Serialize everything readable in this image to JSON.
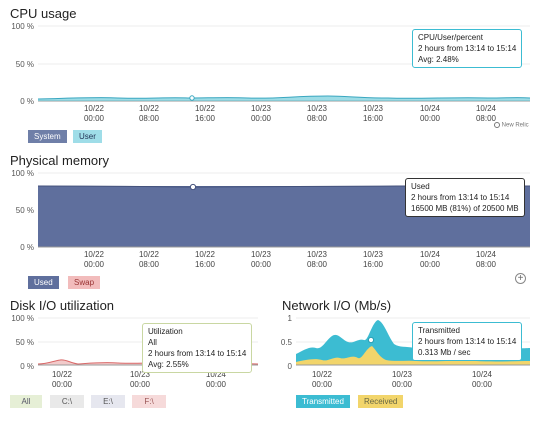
{
  "cpu": {
    "title": "CPU usage",
    "yticks": [
      "100 %",
      "50 %",
      "0 %"
    ],
    "xticks": [
      [
        "10/22",
        "00:00"
      ],
      [
        "10/22",
        "08:00"
      ],
      [
        "10/22",
        "16:00"
      ],
      [
        "10/23",
        "00:00"
      ],
      [
        "10/23",
        "08:00"
      ],
      [
        "10/23",
        "16:00"
      ],
      [
        "10/24",
        "00:00"
      ],
      [
        "10/24",
        "08:00"
      ]
    ],
    "tooltip": {
      "l1": "CPU/User/percent",
      "l2": "2 hours from 13:14 to 15:14",
      "l3": "Avg: 2.48%"
    },
    "legend": [
      "System",
      "User"
    ],
    "brand": "New Relic",
    "colors": {
      "system": "#6f7fa8",
      "user": "#5bc4d6"
    }
  },
  "memory": {
    "title": "Physical memory",
    "yticks": [
      "100 %",
      "50 %",
      "0 %"
    ],
    "xticks": [
      [
        "10/22",
        "00:00"
      ],
      [
        "10/22",
        "08:00"
      ],
      [
        "10/22",
        "16:00"
      ],
      [
        "10/23",
        "00:00"
      ],
      [
        "10/23",
        "08:00"
      ],
      [
        "10/23",
        "16:00"
      ],
      [
        "10/24",
        "00:00"
      ],
      [
        "10/24",
        "08:00"
      ]
    ],
    "tooltip": {
      "l1": "Used",
      "l2": "2 hours from 13:14 to 15:14",
      "l3": "16500 MB (81%) of 20500 MB"
    },
    "legend": [
      "Used",
      "Swap"
    ],
    "colors": {
      "used": "#5f6f9d",
      "swap": "#e9a7a7"
    },
    "used_percent": 81
  },
  "disk": {
    "title": "Disk I/O utilization",
    "yticks": [
      "100 %",
      "50 %",
      "0 %"
    ],
    "xticks": [
      [
        "10/22",
        "00:00"
      ],
      [
        "10/23",
        "00:00"
      ],
      [
        "10/24",
        "00:00"
      ]
    ],
    "tooltip": {
      "l1": "Utilization",
      "l2": "All",
      "l3": "2 hours from 13:14 to 15:14",
      "l4": "Avg: 2.55%"
    },
    "legend": [
      "All",
      "C:\\",
      "E:\\",
      "F:\\"
    ]
  },
  "network": {
    "title": "Network I/O (Mb/s)",
    "yticks": [
      "1",
      "0.5",
      "0"
    ],
    "xticks": [
      [
        "10/22",
        "00:00"
      ],
      [
        "10/23",
        "00:00"
      ],
      [
        "10/24",
        "00:00"
      ]
    ],
    "tooltip": {
      "l1": "Transmitted",
      "l2": "2 hours from 13:14 to 15:14",
      "l3": "0.313 Mb / sec"
    },
    "legend": [
      "Transmitted",
      "Received"
    ],
    "colors": {
      "transmitted": "#3cbcd2",
      "received": "#f2d56b"
    }
  }
}
